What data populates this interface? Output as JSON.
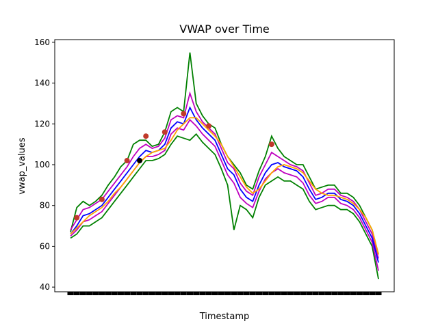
{
  "chart_data": {
    "type": "line",
    "title": "VWAP over Time",
    "xlabel": "Timestamp",
    "ylabel": "vwap_values",
    "categories": [
      null,
      null,
      null,
      null,
      null,
      null,
      null,
      null,
      null,
      null,
      null,
      null,
      null,
      null,
      null,
      null,
      null,
      null,
      null,
      null,
      null,
      null,
      null,
      null,
      null,
      null,
      null,
      null,
      null,
      null,
      null,
      null,
      null,
      null,
      null,
      null,
      null,
      null,
      null,
      null,
      null,
      null,
      null,
      null,
      null,
      null,
      null,
      null,
      null,
      null
    ],
    "ylim": [
      37.7,
      161.3
    ],
    "yticks": [
      40,
      60,
      80,
      100,
      120,
      140,
      160
    ],
    "series": [
      {
        "color": "green",
        "values": [
          67,
          79,
          82,
          80,
          82,
          85,
          90,
          94,
          99,
          102,
          110,
          112,
          112,
          109,
          110,
          116,
          126,
          128,
          126,
          155,
          130,
          124,
          120,
          118,
          110,
          104,
          100,
          96,
          90,
          88,
          97,
          104,
          114,
          108,
          104,
          102,
          100,
          100,
          94,
          88,
          89,
          90,
          90,
          86,
          86,
          84,
          80,
          74,
          68,
          56
        ]
      },
      {
        "color": "green",
        "values": [
          64,
          66,
          70,
          70,
          72,
          74,
          78,
          82,
          86,
          90,
          94,
          98,
          102,
          102,
          103,
          105,
          110,
          114,
          113,
          112,
          115,
          111,
          108,
          105,
          98,
          90,
          68,
          80,
          78,
          74,
          84,
          90,
          92,
          94,
          92,
          92,
          90,
          88,
          82,
          78,
          79,
          80,
          80,
          78,
          78,
          76,
          72,
          66,
          60,
          44
        ]
      },
      {
        "color": "#bf00bf",
        "values": [
          68,
          73,
          78,
          79,
          81,
          83,
          87,
          91,
          95,
          99,
          104,
          108,
          110,
          108,
          109,
          113,
          122,
          124,
          123,
          135,
          126,
          121,
          118,
          115,
          108,
          101,
          98,
          91,
          87,
          85,
          94,
          100,
          106,
          104,
          102,
          100,
          99,
          97,
          91,
          85,
          86,
          88,
          88,
          85,
          84,
          82,
          78,
          72,
          66,
          54
        ]
      },
      {
        "color": "#bf00bf",
        "values": [
          65,
          68,
          72,
          73,
          75,
          77,
          81,
          85,
          89,
          93,
          97,
          101,
          104,
          104,
          105,
          107,
          115,
          118,
          117,
          122,
          119,
          115,
          112,
          109,
          102,
          95,
          91,
          84,
          81,
          79,
          87,
          93,
          96,
          98,
          96,
          95,
          94,
          91,
          85,
          81,
          82,
          84,
          84,
          81,
          80,
          78,
          74,
          68,
          62,
          48
        ]
      },
      {
        "color": "blue",
        "values": [
          66,
          70,
          75,
          76,
          78,
          80,
          84,
          88,
          92,
          96,
          100,
          104,
          107,
          106,
          107,
          110,
          118,
          121,
          120,
          128,
          122,
          118,
          115,
          112,
          105,
          98,
          95,
          88,
          84,
          82,
          90,
          96,
          100,
          101,
          99,
          98,
          97,
          94,
          88,
          83,
          84,
          86,
          86,
          83,
          82,
          80,
          76,
          70,
          64,
          52
        ]
      },
      {
        "color": "orange",
        "values": [
          66,
          69,
          72,
          75,
          77,
          79,
          82,
          86,
          89,
          93,
          97,
          101,
          104,
          106,
          107,
          108,
          112,
          117,
          120,
          123,
          123,
          120,
          117,
          114,
          110,
          104,
          99,
          94,
          89,
          86,
          88,
          92,
          96,
          99,
          100,
          99,
          98,
          96,
          92,
          88,
          86,
          85,
          85,
          84,
          83,
          81,
          78,
          74,
          68,
          56
        ]
      }
    ],
    "points": [
      {
        "x": 1,
        "y": 74,
        "color": "#c0392b"
      },
      {
        "x": 5,
        "y": 83,
        "color": "#c0392b"
      },
      {
        "x": 9,
        "y": 102,
        "color": "#c0392b"
      },
      {
        "x": 12,
        "y": 114,
        "color": "#c0392b"
      },
      {
        "x": 15,
        "y": 116,
        "color": "#c0392b"
      },
      {
        "x": 18,
        "y": 125,
        "color": "#c0392b"
      },
      {
        "x": 22,
        "y": 119,
        "color": "#c0392b"
      },
      {
        "x": 32,
        "y": 110,
        "color": "#c0392b"
      },
      {
        "x": 11,
        "y": 102,
        "color": "#000000"
      }
    ]
  }
}
